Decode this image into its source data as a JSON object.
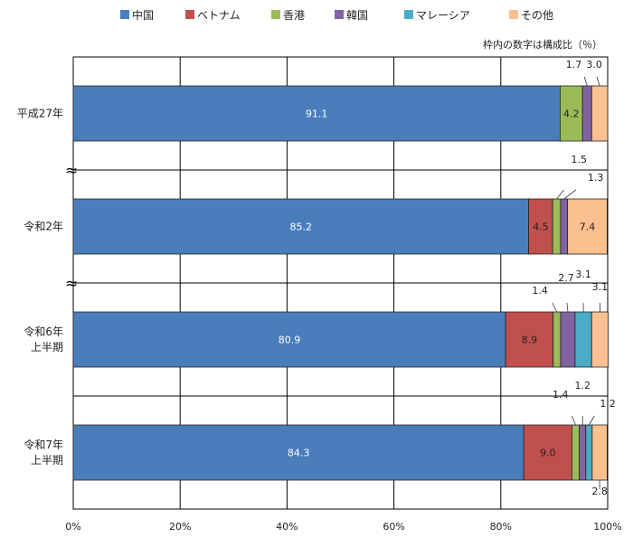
{
  "chart_data": {
    "type": "bar",
    "orientation": "horizontal",
    "stacked": true,
    "note": "枠内の数字は構成比（％）",
    "xlabel": "",
    "ylabel": "",
    "xlim": [
      0,
      100
    ],
    "x_ticks": [
      "0%",
      "20%",
      "40%",
      "60%",
      "80%",
      "100%"
    ],
    "grid": true,
    "legend_position": "top",
    "break_mark": "≈",
    "categories": [
      {
        "id": "h27",
        "label_lines": [
          "平成27年"
        ]
      },
      {
        "id": "r2",
        "label_lines": [
          "令和2年"
        ]
      },
      {
        "id": "r6h1",
        "label_lines": [
          "令和6年",
          "上半期"
        ]
      },
      {
        "id": "r7h1",
        "label_lines": [
          "令和7年",
          "上半期"
        ]
      }
    ],
    "series": [
      {
        "name": "中国",
        "color": "#4a7ebb",
        "values": [
          91.1,
          85.2,
          80.9,
          84.3
        ],
        "labels": [
          "91.1",
          "85.2",
          "80.9",
          "84.3"
        ]
      },
      {
        "name": "ベトナム",
        "color": "#c0504d",
        "values": [
          0,
          4.5,
          8.9,
          9.0
        ],
        "labels": [
          "",
          "4.5",
          "8.9",
          "9.0"
        ]
      },
      {
        "name": "香港",
        "color": "#9bbb59",
        "values": [
          4.2,
          1.5,
          1.4,
          1.4
        ],
        "labels": [
          "4.2",
          "1.5",
          "1.4",
          "1.4"
        ]
      },
      {
        "name": "韓国",
        "color": "#8064a2",
        "values": [
          1.7,
          1.3,
          2.7,
          1.2
        ],
        "labels": [
          "1.7",
          "1.3",
          "2.7",
          "1.2"
        ]
      },
      {
        "name": "マレーシア",
        "color": "#4bacc6",
        "values": [
          0,
          0,
          3.1,
          1.2
        ],
        "labels": [
          "",
          "",
          "3.1",
          "1.2"
        ]
      },
      {
        "name": "その他",
        "color": "#fac090",
        "values": [
          3.0,
          7.4,
          3.1,
          2.8
        ],
        "labels": [
          "3.0",
          "7.4",
          "3.1",
          "2.8"
        ]
      }
    ]
  }
}
